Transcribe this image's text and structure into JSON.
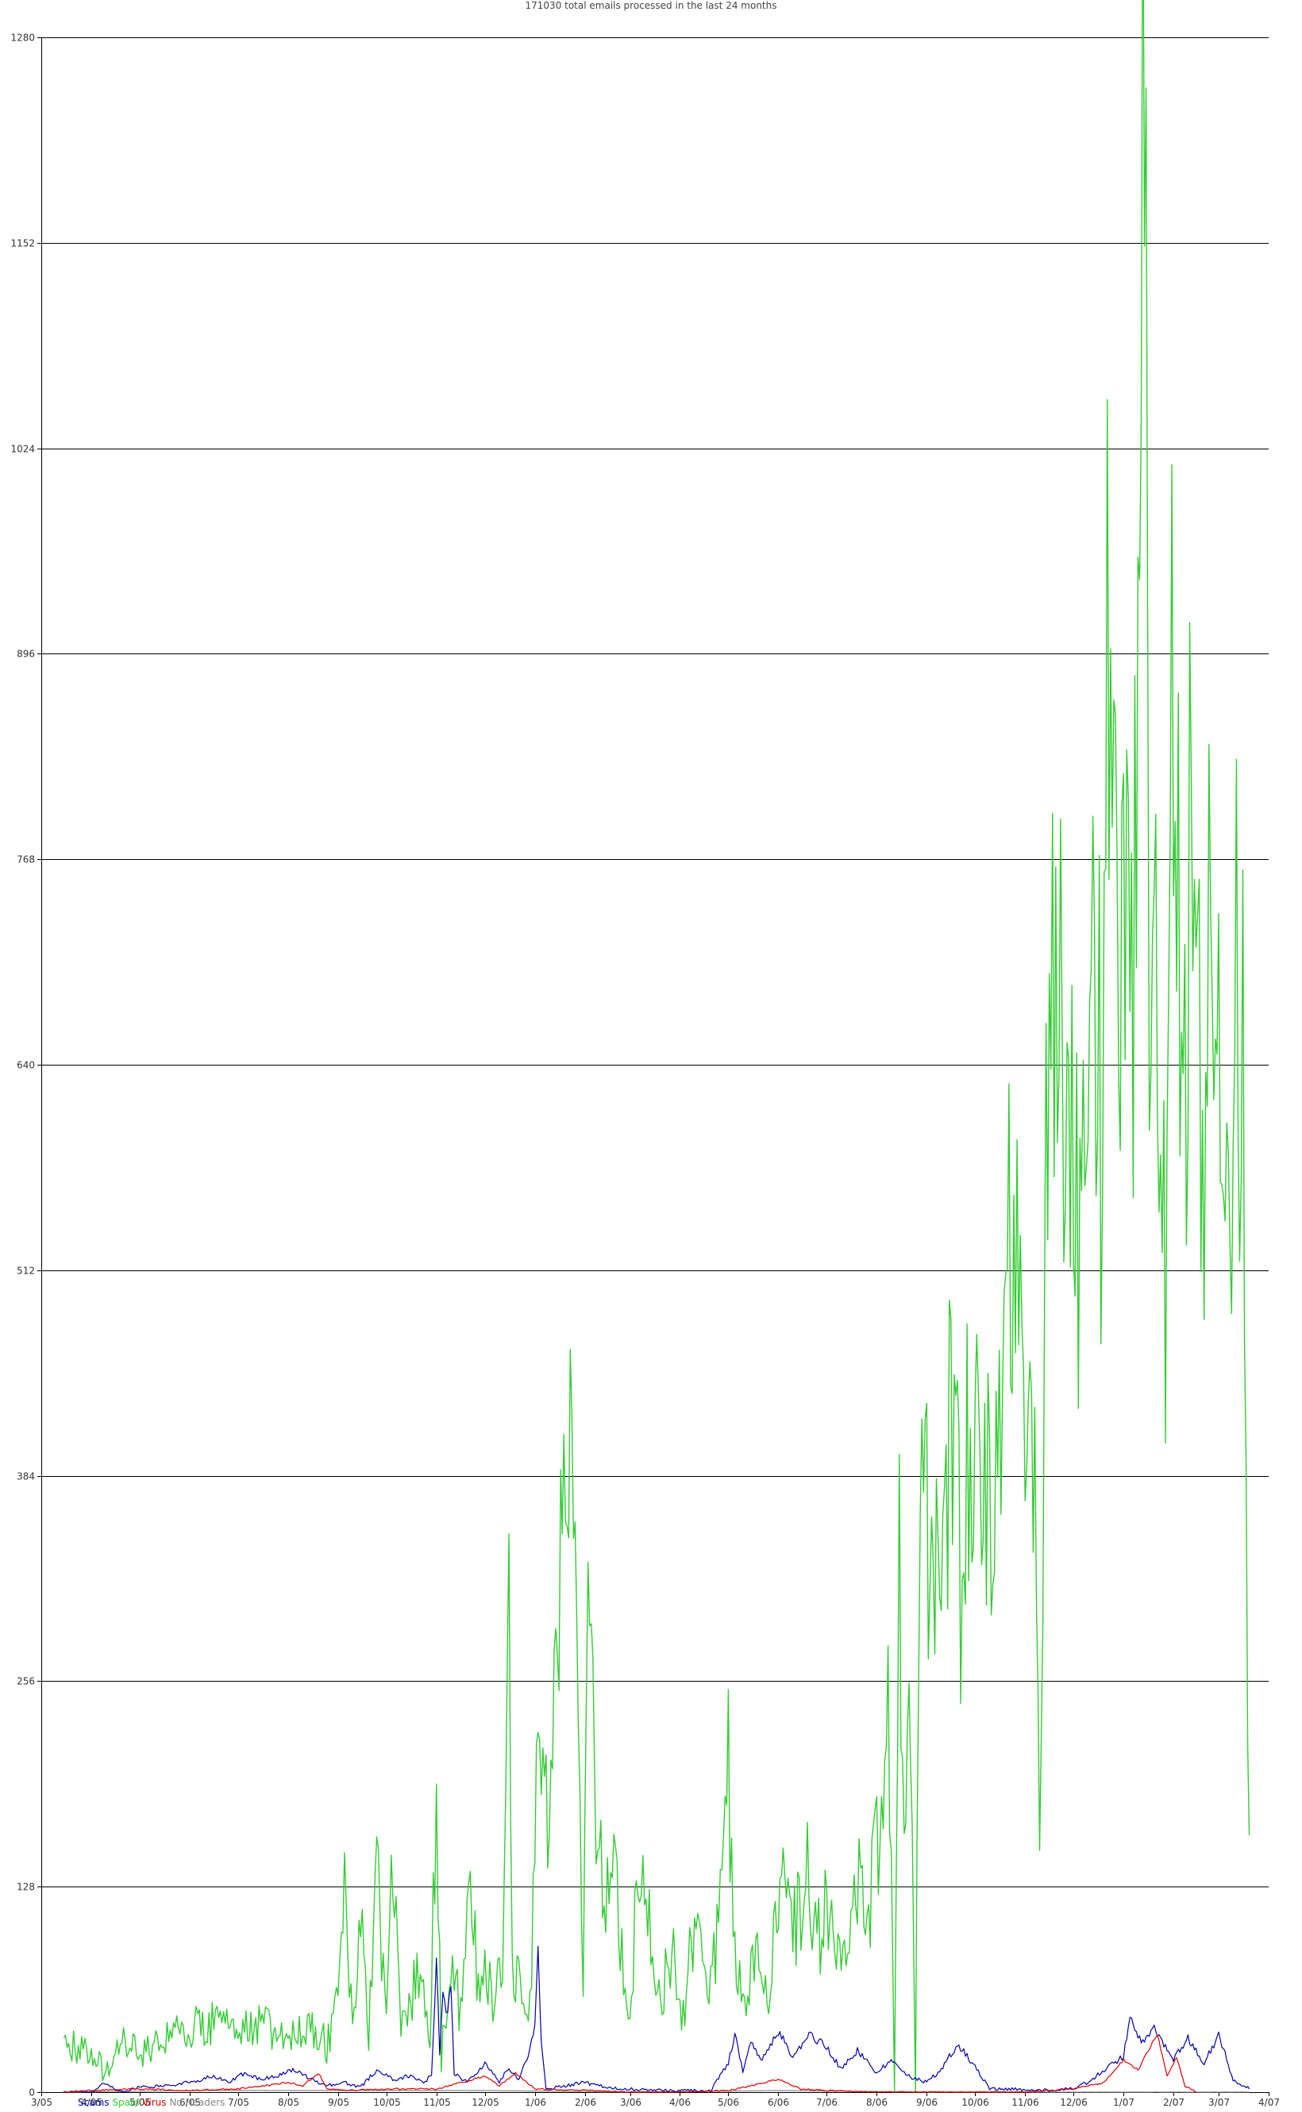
{
  "chart_data": {
    "type": "line",
    "title": "171030 total emails processed in the last 24 months",
    "ylim": [
      0,
      1280
    ],
    "yticks": [
      0,
      128,
      256,
      384,
      512,
      640,
      768,
      896,
      1024,
      1152,
      1280
    ],
    "ytick_labels": [
      "0",
      "128",
      "256",
      "384",
      "512",
      "640",
      "768",
      "896",
      "1024",
      "1152",
      "1280"
    ],
    "xlim": [
      "2005-03-01",
      "2007-04-01"
    ],
    "xticks": [
      "2005-03-01",
      "2005-04-01",
      "2005-05-01",
      "2005-06-01",
      "2005-07-01",
      "2005-08-01",
      "2005-09-01",
      "2005-10-01",
      "2005-11-01",
      "2005-12-01",
      "2006-01-01",
      "2006-02-01",
      "2006-03-01",
      "2006-04-01",
      "2006-05-01",
      "2006-06-01",
      "2006-07-01",
      "2006-08-01",
      "2006-09-01",
      "2006-10-01",
      "2006-11-01",
      "2006-12-01",
      "2007-01-01",
      "2007-02-01",
      "2007-03-01",
      "2007-04-01"
    ],
    "xtick_labels": [
      "3/05",
      "4/05",
      "5/05",
      "6/05",
      "7/05",
      "8/05",
      "9/05",
      "10/05",
      "11/05",
      "12/05",
      "1/06",
      "2/06",
      "3/06",
      "4/06",
      "5/06",
      "6/06",
      "7/06",
      "8/06",
      "9/06",
      "10/06",
      "11/06",
      "12/06",
      "1/07",
      "2/07",
      "3/07",
      "4/07"
    ],
    "grid": "horizontal",
    "legend_position": "bottom-left",
    "series": [
      {
        "name": "Scams",
        "color": "#0000aa",
        "points": [
          [
            "2005-03-15",
            0
          ],
          [
            "2005-04-01",
            0
          ],
          [
            "2005-04-10",
            6
          ],
          [
            "2005-04-20",
            0
          ],
          [
            "2005-05-01",
            3
          ],
          [
            "2005-05-15",
            4
          ],
          [
            "2005-06-01",
            6
          ],
          [
            "2005-06-15",
            10
          ],
          [
            "2005-06-25",
            6
          ],
          [
            "2005-07-05",
            12
          ],
          [
            "2005-07-15",
            8
          ],
          [
            "2005-07-25",
            10
          ],
          [
            "2005-08-05",
            14
          ],
          [
            "2005-08-15",
            8
          ],
          [
            "2005-08-25",
            4
          ],
          [
            "2005-09-05",
            6
          ],
          [
            "2005-09-15",
            3
          ],
          [
            "2005-09-25",
            14
          ],
          [
            "2005-10-05",
            8
          ],
          [
            "2005-10-15",
            10
          ],
          [
            "2005-10-25",
            6
          ],
          [
            "2005-10-29",
            12
          ],
          [
            "2005-11-01",
            80
          ],
          [
            "2005-11-03",
            25
          ],
          [
            "2005-11-05",
            60
          ],
          [
            "2005-11-08",
            48
          ],
          [
            "2005-11-10",
            70
          ],
          [
            "2005-11-12",
            12
          ],
          [
            "2005-11-20",
            6
          ],
          [
            "2005-12-01",
            18
          ],
          [
            "2005-12-10",
            6
          ],
          [
            "2005-12-15",
            14
          ],
          [
            "2005-12-22",
            8
          ],
          [
            "2005-12-28",
            22
          ],
          [
            "2006-01-01",
            40
          ],
          [
            "2006-01-03",
            88
          ],
          [
            "2006-01-05",
            30
          ],
          [
            "2006-01-08",
            2
          ],
          [
            "2006-01-20",
            4
          ],
          [
            "2006-02-01",
            6
          ],
          [
            "2006-02-15",
            3
          ],
          [
            "2006-03-01",
            2
          ],
          [
            "2006-04-01",
            1
          ],
          [
            "2006-04-20",
            1
          ],
          [
            "2006-05-01",
            18
          ],
          [
            "2006-05-05",
            36
          ],
          [
            "2006-05-10",
            12
          ],
          [
            "2006-05-15",
            30
          ],
          [
            "2006-05-22",
            20
          ],
          [
            "2006-06-01",
            38
          ],
          [
            "2006-06-10",
            22
          ],
          [
            "2006-06-20",
            36
          ],
          [
            "2006-07-01",
            28
          ],
          [
            "2006-07-10",
            14
          ],
          [
            "2006-07-20",
            26
          ],
          [
            "2006-08-01",
            12
          ],
          [
            "2006-08-10",
            20
          ],
          [
            "2006-08-20",
            10
          ],
          [
            "2006-09-01",
            6
          ],
          [
            "2006-09-10",
            14
          ],
          [
            "2006-09-20",
            30
          ],
          [
            "2006-10-01",
            16
          ],
          [
            "2006-10-10",
            2
          ],
          [
            "2006-10-25",
            2
          ],
          [
            "2006-11-10",
            1
          ],
          [
            "2006-11-30",
            2
          ],
          [
            "2006-12-10",
            6
          ],
          [
            "2006-12-20",
            14
          ],
          [
            "2007-01-01",
            22
          ],
          [
            "2007-01-05",
            48
          ],
          [
            "2007-01-12",
            30
          ],
          [
            "2007-01-20",
            40
          ],
          [
            "2007-02-01",
            20
          ],
          [
            "2007-02-10",
            34
          ],
          [
            "2007-02-20",
            18
          ],
          [
            "2007-03-01",
            36
          ],
          [
            "2007-03-10",
            8
          ],
          [
            "2007-03-20",
            2
          ]
        ]
      },
      {
        "name": "Spam",
        "color": "#33cc33",
        "points": [
          [
            "2005-03-15",
            30
          ],
          [
            "2005-04-01",
            26
          ],
          [
            "2005-04-10",
            10
          ],
          [
            "2005-04-20",
            32
          ],
          [
            "2005-05-01",
            24
          ],
          [
            "2005-05-15",
            36
          ],
          [
            "2005-06-01",
            40
          ],
          [
            "2005-06-15",
            44
          ],
          [
            "2005-07-01",
            36
          ],
          [
            "2005-07-15",
            42
          ],
          [
            "2005-08-01",
            34
          ],
          [
            "2005-08-10",
            40
          ],
          [
            "2005-08-20",
            40
          ],
          [
            "2005-08-25",
            28
          ],
          [
            "2005-09-01",
            60
          ],
          [
            "2005-09-05",
            124
          ],
          [
            "2005-09-10",
            40
          ],
          [
            "2005-09-15",
            110
          ],
          [
            "2005-09-20",
            36
          ],
          [
            "2005-09-25",
            136
          ],
          [
            "2005-10-01",
            48
          ],
          [
            "2005-10-05",
            150
          ],
          [
            "2005-10-10",
            40
          ],
          [
            "2005-10-20",
            70
          ],
          [
            "2005-10-28",
            40
          ],
          [
            "2005-11-01",
            196
          ],
          [
            "2005-11-04",
            20
          ],
          [
            "2005-11-10",
            90
          ],
          [
            "2005-11-15",
            52
          ],
          [
            "2005-11-22",
            120
          ],
          [
            "2005-11-28",
            60
          ],
          [
            "2005-12-01",
            80
          ],
          [
            "2005-12-06",
            60
          ],
          [
            "2005-12-12",
            70
          ],
          [
            "2005-12-16",
            306
          ],
          [
            "2005-12-18",
            70
          ],
          [
            "2005-12-25",
            68
          ],
          [
            "2005-12-30",
            60
          ],
          [
            "2006-01-03",
            254
          ],
          [
            "2006-01-07",
            170
          ],
          [
            "2006-01-12",
            196
          ],
          [
            "2006-01-17",
            330
          ],
          [
            "2006-01-23",
            388
          ],
          [
            "2006-01-27",
            280
          ],
          [
            "2006-01-31",
            46
          ],
          [
            "2006-02-03",
            320
          ],
          [
            "2006-02-08",
            182
          ],
          [
            "2006-02-12",
            120
          ],
          [
            "2006-02-18",
            144
          ],
          [
            "2006-02-25",
            80
          ],
          [
            "2006-03-01",
            40
          ],
          [
            "2006-03-06",
            148
          ],
          [
            "2006-03-12",
            110
          ],
          [
            "2006-03-20",
            60
          ],
          [
            "2006-03-28",
            90
          ],
          [
            "2006-04-03",
            48
          ],
          [
            "2006-04-10",
            110
          ],
          [
            "2006-04-20",
            60
          ],
          [
            "2006-04-28",
            130
          ],
          [
            "2006-05-01",
            200
          ],
          [
            "2006-05-05",
            80
          ],
          [
            "2006-05-10",
            60
          ],
          [
            "2006-05-20",
            80
          ],
          [
            "2006-05-26",
            66
          ],
          [
            "2006-06-01",
            130
          ],
          [
            "2006-06-10",
            100
          ],
          [
            "2006-06-20",
            140
          ],
          [
            "2006-06-25",
            90
          ],
          [
            "2006-07-01",
            120
          ],
          [
            "2006-07-10",
            70
          ],
          [
            "2006-07-20",
            130
          ],
          [
            "2006-07-26",
            104
          ],
          [
            "2006-08-01",
            160
          ],
          [
            "2006-08-05",
            180
          ],
          [
            "2006-08-08",
            250
          ],
          [
            "2006-08-12",
            0
          ],
          [
            "2006-08-15",
            330
          ],
          [
            "2006-08-18",
            150
          ],
          [
            "2006-08-21",
            280
          ],
          [
            "2006-08-25",
            0
          ],
          [
            "2006-08-28",
            404
          ],
          [
            "2006-09-05",
            324
          ],
          [
            "2006-09-10",
            290
          ],
          [
            "2006-09-15",
            400
          ],
          [
            "2006-09-20",
            520
          ],
          [
            "2006-09-22",
            256
          ],
          [
            "2006-09-26",
            400
          ],
          [
            "2006-10-03",
            460
          ],
          [
            "2006-10-08",
            360
          ],
          [
            "2006-10-14",
            426
          ],
          [
            "2006-10-20",
            500
          ],
          [
            "2006-10-26",
            560
          ],
          [
            "2006-11-03",
            400
          ],
          [
            "2006-11-08",
            330
          ],
          [
            "2006-11-10",
            150
          ],
          [
            "2006-11-14",
            560
          ],
          [
            "2006-11-20",
            780
          ],
          [
            "2006-11-26",
            590
          ],
          [
            "2006-12-01",
            660
          ],
          [
            "2006-12-06",
            480
          ],
          [
            "2006-12-12",
            804
          ],
          [
            "2006-12-18",
            600
          ],
          [
            "2006-12-22",
            940
          ],
          [
            "2006-12-26",
            720
          ],
          [
            "2007-01-01",
            780
          ],
          [
            "2007-01-06",
            640
          ],
          [
            "2007-01-10",
            900
          ],
          [
            "2007-01-14",
            1255
          ],
          [
            "2007-01-17",
            740
          ],
          [
            "2007-01-22",
            620
          ],
          [
            "2007-01-27",
            490
          ],
          [
            "2007-01-30",
            960
          ],
          [
            "2007-02-03",
            780
          ],
          [
            "2007-02-08",
            640
          ],
          [
            "2007-02-14",
            840
          ],
          [
            "2007-02-20",
            550
          ],
          [
            "2007-02-24",
            880
          ],
          [
            "2007-02-28",
            740
          ],
          [
            "2007-03-04",
            700
          ],
          [
            "2007-03-08",
            570
          ],
          [
            "2007-03-10",
            700
          ],
          [
            "2007-03-14",
            660
          ],
          [
            "2007-03-16",
            640
          ],
          [
            "2007-03-19",
            280
          ],
          [
            "2007-03-20",
            160
          ]
        ]
      },
      {
        "name": "Virus",
        "color": "#dd0000",
        "points": [
          [
            "2005-03-15",
            0
          ],
          [
            "2005-04-01",
            1
          ],
          [
            "2005-05-01",
            2
          ],
          [
            "2005-06-01",
            1
          ],
          [
            "2005-07-01",
            2
          ],
          [
            "2005-08-01",
            6
          ],
          [
            "2005-08-10",
            4
          ],
          [
            "2005-08-20",
            12
          ],
          [
            "2005-08-25",
            2
          ],
          [
            "2005-09-05",
            1
          ],
          [
            "2005-10-01",
            2
          ],
          [
            "2005-11-01",
            2
          ],
          [
            "2005-12-01",
            10
          ],
          [
            "2005-12-10",
            4
          ],
          [
            "2005-12-20",
            12
          ],
          [
            "2006-01-01",
            2
          ],
          [
            "2006-02-01",
            1
          ],
          [
            "2006-03-01",
            0
          ],
          [
            "2006-04-01",
            0
          ],
          [
            "2006-05-01",
            1
          ],
          [
            "2006-05-15",
            4
          ],
          [
            "2006-06-01",
            8
          ],
          [
            "2006-06-15",
            2
          ],
          [
            "2006-07-01",
            1
          ],
          [
            "2006-08-01",
            0
          ],
          [
            "2006-09-01",
            0
          ],
          [
            "2006-10-01",
            0
          ],
          [
            "2006-11-01",
            0
          ],
          [
            "2006-12-01",
            2
          ],
          [
            "2006-12-20",
            6
          ],
          [
            "2007-01-01",
            20
          ],
          [
            "2007-01-10",
            14
          ],
          [
            "2007-01-22",
            36
          ],
          [
            "2007-01-28",
            10
          ],
          [
            "2007-02-03",
            22
          ],
          [
            "2007-02-08",
            4
          ],
          [
            "2007-02-15",
            0
          ]
        ]
      },
      {
        "name": "No Headers",
        "color": "#888888",
        "points": [
          [
            "2005-03-15",
            0
          ],
          [
            "2005-06-01",
            1
          ],
          [
            "2005-09-01",
            1
          ],
          [
            "2005-12-01",
            1
          ],
          [
            "2006-03-01",
            0
          ],
          [
            "2006-06-01",
            1
          ],
          [
            "2006-09-01",
            0
          ],
          [
            "2006-12-01",
            0
          ],
          [
            "2007-02-01",
            0
          ],
          [
            "2007-03-20",
            0
          ]
        ]
      }
    ]
  }
}
